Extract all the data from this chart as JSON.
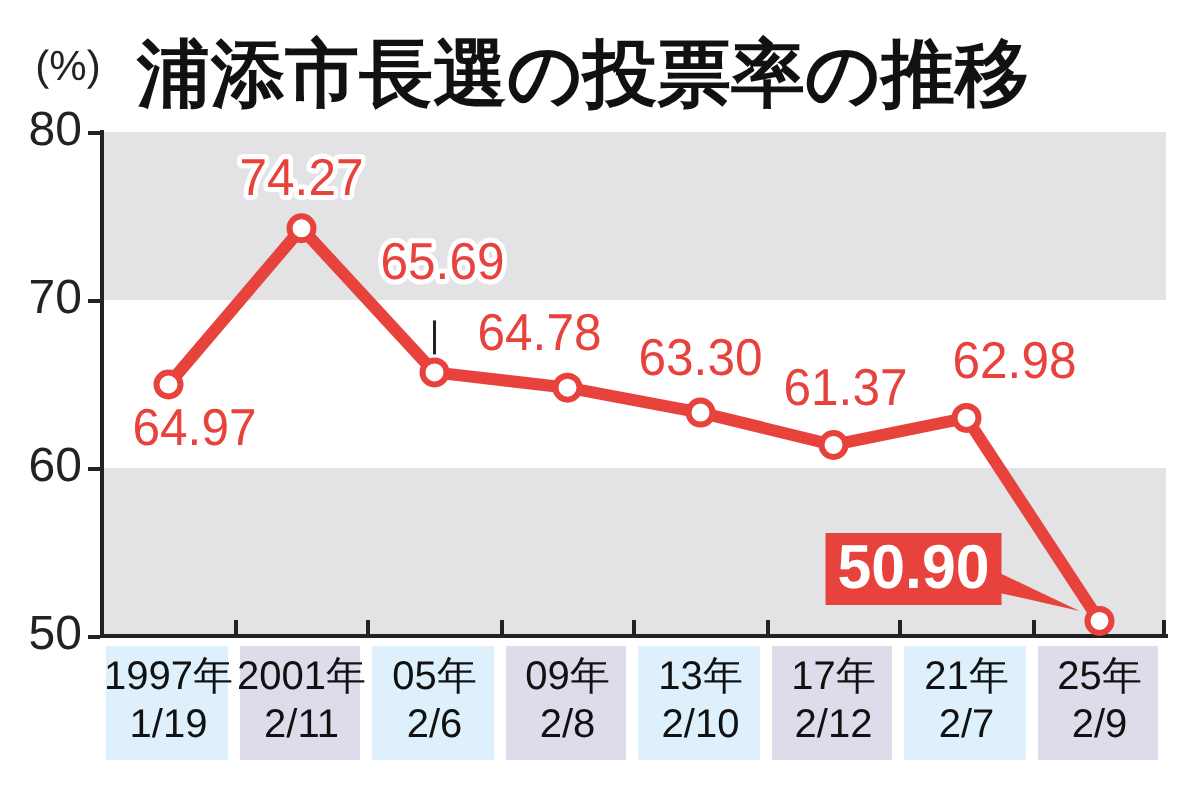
{
  "chart_data": {
    "type": "line",
    "title": "浦添市長選の投票率の推移",
    "ylabel": "(%)",
    "categories": [
      "1997年\n1/19",
      "2001年\n2/11",
      "05年\n2/6",
      "09年\n2/8",
      "13年\n2/10",
      "17年\n2/12",
      "21年\n2/7",
      "25年\n2/9"
    ],
    "series": [
      {
        "color": "#e8423d",
        "values": [
          64.97,
          74.27,
          65.69,
          64.78,
          63.3,
          61.37,
          62.98,
          50.9
        ],
        "value_labels": [
          "64.97",
          "74.27",
          "65.69",
          "64.78",
          "63.30",
          "61.37",
          "62.98",
          "50.90"
        ]
      }
    ],
    "ylim": [
      50,
      80
    ],
    "yticks": [
      50,
      60,
      70,
      80
    ],
    "marker": "circle",
    "line_style": "solid",
    "bands": [
      {
        "axis": "y",
        "from": 70,
        "to": 80,
        "color": "#e3e3e5"
      },
      {
        "axis": "y",
        "from": 50,
        "to": 60,
        "color": "#e3e3e5"
      }
    ]
  }
}
